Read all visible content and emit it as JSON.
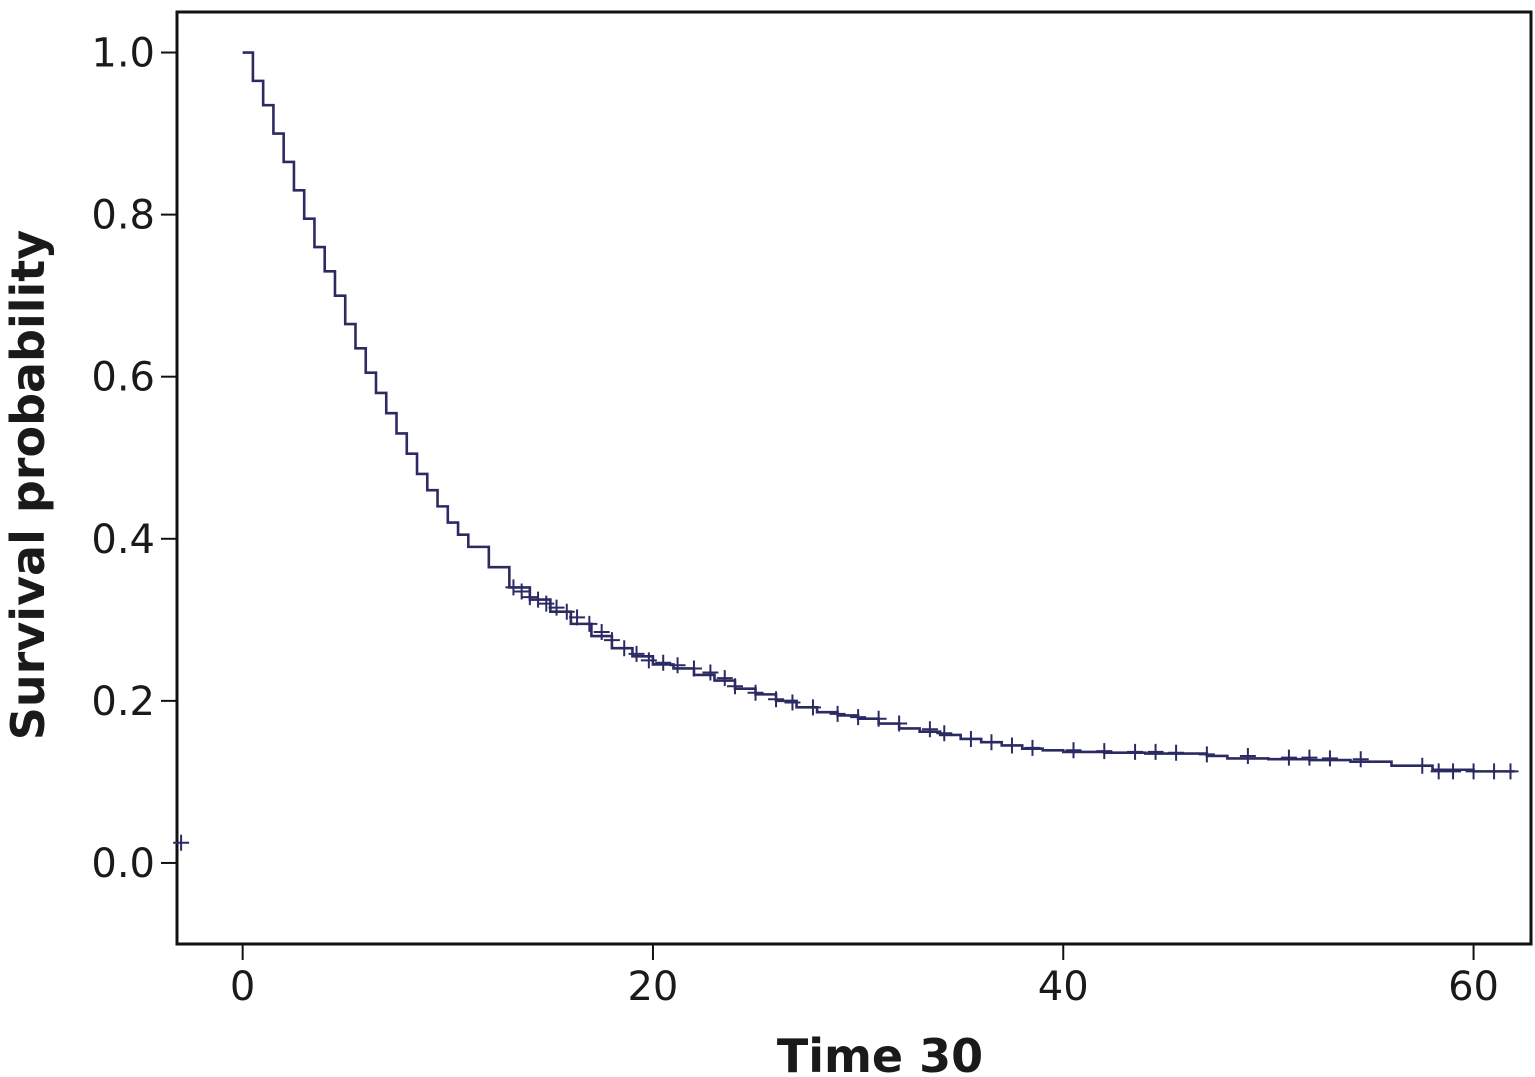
{
  "chart_data": {
    "type": "line",
    "title": "",
    "xlabel": "Time 30",
    "ylabel": "Survival probability",
    "xlim": [
      -3.2,
      62.8
    ],
    "ylim": [
      -0.1,
      1.05
    ],
    "x_ticks": [
      0,
      20,
      40,
      60
    ],
    "x_tick_labels": [
      "0",
      "20",
      "40",
      "60"
    ],
    "y_ticks": [
      0.0,
      0.2,
      0.4,
      0.6,
      0.8,
      1.0
    ],
    "y_tick_labels": [
      "0.0",
      "0.2",
      "0.4",
      "0.6",
      "0.8",
      "1.0"
    ],
    "grid": false,
    "line_color": "#2b2a63",
    "series": [
      {
        "step": true,
        "x": [
          0,
          0.5,
          1,
          1.5,
          2,
          2.5,
          3,
          3.5,
          4,
          4.5,
          5,
          5.5,
          6,
          6.5,
          7,
          7.5,
          8,
          8.5,
          9,
          9.5,
          10,
          10.5,
          11,
          12,
          13,
          14,
          15,
          16,
          17,
          18,
          19,
          20,
          21,
          22,
          23,
          24,
          25,
          26,
          27,
          28,
          29,
          30,
          31,
          32,
          33,
          34,
          35,
          36,
          37,
          38,
          39,
          40,
          42,
          44,
          46,
          47,
          48,
          50,
          52,
          54,
          56,
          58,
          60,
          62
        ],
        "y": [
          1.0,
          0.965,
          0.935,
          0.9,
          0.865,
          0.83,
          0.795,
          0.76,
          0.73,
          0.7,
          0.665,
          0.635,
          0.605,
          0.58,
          0.555,
          0.53,
          0.505,
          0.48,
          0.46,
          0.44,
          0.42,
          0.405,
          0.39,
          0.365,
          0.34,
          0.325,
          0.31,
          0.295,
          0.28,
          0.265,
          0.255,
          0.245,
          0.24,
          0.232,
          0.225,
          0.215,
          0.208,
          0.2,
          0.192,
          0.186,
          0.182,
          0.178,
          0.172,
          0.166,
          0.162,
          0.158,
          0.153,
          0.149,
          0.145,
          0.141,
          0.139,
          0.137,
          0.136,
          0.135,
          0.135,
          0.132,
          0.129,
          0.128,
          0.127,
          0.125,
          0.12,
          0.115,
          0.113,
          0.113
        ]
      }
    ],
    "censor_marks": [
      {
        "x": -3.0,
        "y": 0.025
      },
      {
        "x": 13.2,
        "y": 0.34
      },
      {
        "x": 13.6,
        "y": 0.335
      },
      {
        "x": 14.0,
        "y": 0.328
      },
      {
        "x": 14.4,
        "y": 0.325
      },
      {
        "x": 14.8,
        "y": 0.32
      },
      {
        "x": 15.3,
        "y": 0.315
      },
      {
        "x": 15.8,
        "y": 0.31
      },
      {
        "x": 16.3,
        "y": 0.303
      },
      {
        "x": 16.9,
        "y": 0.295
      },
      {
        "x": 17.5,
        "y": 0.285
      },
      {
        "x": 18.0,
        "y": 0.275
      },
      {
        "x": 18.6,
        "y": 0.265
      },
      {
        "x": 19.2,
        "y": 0.258
      },
      {
        "x": 19.8,
        "y": 0.25
      },
      {
        "x": 20.5,
        "y": 0.247
      },
      {
        "x": 21.2,
        "y": 0.244
      },
      {
        "x": 22.0,
        "y": 0.24
      },
      {
        "x": 22.8,
        "y": 0.235
      },
      {
        "x": 23.5,
        "y": 0.228
      },
      {
        "x": 24.0,
        "y": 0.218
      },
      {
        "x": 25.0,
        "y": 0.21
      },
      {
        "x": 26.0,
        "y": 0.202
      },
      {
        "x": 26.8,
        "y": 0.198
      },
      {
        "x": 27.8,
        "y": 0.192
      },
      {
        "x": 29.0,
        "y": 0.184
      },
      {
        "x": 30.0,
        "y": 0.18
      },
      {
        "x": 31.0,
        "y": 0.178
      },
      {
        "x": 32.0,
        "y": 0.172
      },
      {
        "x": 33.5,
        "y": 0.165
      },
      {
        "x": 34.2,
        "y": 0.16
      },
      {
        "x": 35.5,
        "y": 0.153
      },
      {
        "x": 36.5,
        "y": 0.149
      },
      {
        "x": 37.5,
        "y": 0.145
      },
      {
        "x": 38.5,
        "y": 0.142
      },
      {
        "x": 40.5,
        "y": 0.139
      },
      {
        "x": 42.0,
        "y": 0.138
      },
      {
        "x": 43.5,
        "y": 0.137
      },
      {
        "x": 44.5,
        "y": 0.137
      },
      {
        "x": 45.5,
        "y": 0.136
      },
      {
        "x": 47.0,
        "y": 0.134
      },
      {
        "x": 49.0,
        "y": 0.132
      },
      {
        "x": 51.0,
        "y": 0.13
      },
      {
        "x": 52.0,
        "y": 0.13
      },
      {
        "x": 53.0,
        "y": 0.129
      },
      {
        "x": 54.5,
        "y": 0.128
      },
      {
        "x": 57.5,
        "y": 0.12
      },
      {
        "x": 58.3,
        "y": 0.113
      },
      {
        "x": 59.0,
        "y": 0.113
      },
      {
        "x": 60.0,
        "y": 0.113
      },
      {
        "x": 61.0,
        "y": 0.113
      },
      {
        "x": 61.8,
        "y": 0.113
      }
    ]
  }
}
